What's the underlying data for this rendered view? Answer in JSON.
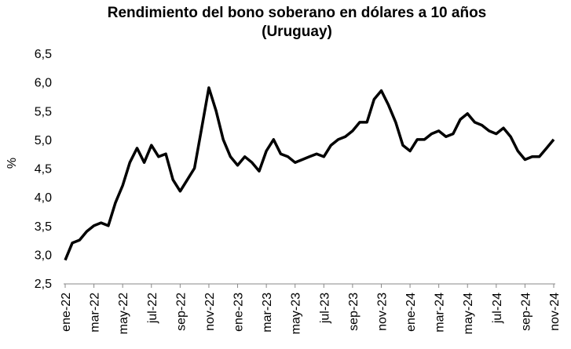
{
  "chart_data": {
    "type": "line",
    "title": [
      "Rendimiento del bono soberano en dólares a 10 años",
      "(Uruguay)"
    ],
    "y_label": "%",
    "categories": [
      "ene-22",
      null,
      null,
      null,
      "mar-22",
      null,
      null,
      null,
      "may-22",
      null,
      null,
      null,
      "jul-22",
      null,
      null,
      null,
      "sep-22",
      null,
      null,
      null,
      "nov-22",
      null,
      null,
      null,
      "ene-23",
      null,
      null,
      null,
      "mar-23",
      null,
      null,
      null,
      "may-23",
      null,
      null,
      null,
      "jul-23",
      null,
      null,
      null,
      "sep-23",
      null,
      null,
      null,
      "nov-23",
      null,
      null,
      null,
      "ene-24",
      null,
      null,
      null,
      "mar-24",
      null,
      null,
      null,
      "may-24",
      null,
      null,
      null,
      "jul-24",
      null,
      null,
      null,
      "sep-24",
      null,
      null,
      null,
      "nov-24"
    ],
    "series": [
      {
        "name": "Rendimiento",
        "color": "#000000",
        "values": [
          2.9,
          3.2,
          3.25,
          3.4,
          3.5,
          3.55,
          3.5,
          3.9,
          4.2,
          4.6,
          4.85,
          4.6,
          4.9,
          4.7,
          4.75,
          4.3,
          4.1,
          4.3,
          4.5,
          5.2,
          5.9,
          5.5,
          5.0,
          4.7,
          4.55,
          4.7,
          4.6,
          4.45,
          4.8,
          5.0,
          4.75,
          4.7,
          4.6,
          4.65,
          4.7,
          4.75,
          4.7,
          4.9,
          5.0,
          5.05,
          5.15,
          5.3,
          5.3,
          5.7,
          5.85,
          5.6,
          5.3,
          4.9,
          4.8,
          5.0,
          5.0,
          5.1,
          5.15,
          5.05,
          5.1,
          5.35,
          5.45,
          5.3,
          5.25,
          5.15,
          5.1,
          5.2,
          5.05,
          4.8,
          4.65,
          4.7,
          4.7,
          4.85,
          5.0
        ]
      }
    ],
    "ylim": [
      2.5,
      6.5
    ],
    "yticks": [
      {
        "value": 2.5,
        "label": "2,5"
      },
      {
        "value": 3.0,
        "label": "3,0"
      },
      {
        "value": 3.5,
        "label": "3,5"
      },
      {
        "value": 4.0,
        "label": "4,0"
      },
      {
        "value": 4.5,
        "label": "4,5"
      },
      {
        "value": 5.0,
        "label": "5,0"
      },
      {
        "value": 5.5,
        "label": "5,5"
      },
      {
        "value": 6.0,
        "label": "6,0"
      },
      {
        "value": 6.5,
        "label": "6,5"
      }
    ],
    "grid": false
  }
}
